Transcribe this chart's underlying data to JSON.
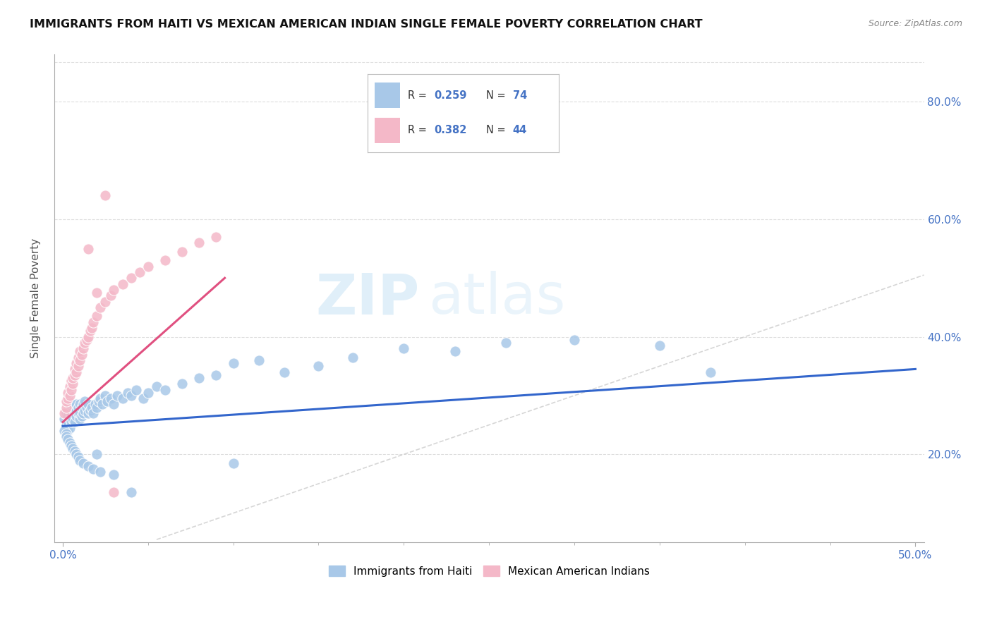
{
  "title": "IMMIGRANTS FROM HAITI VS MEXICAN AMERICAN INDIAN SINGLE FEMALE POVERTY CORRELATION CHART",
  "source": "Source: ZipAtlas.com",
  "ylabel": "Single Female Poverty",
  "y_ticks": [
    0.2,
    0.4,
    0.6,
    0.8
  ],
  "y_tick_labels": [
    "20.0%",
    "40.0%",
    "60.0%",
    "80.0%"
  ],
  "xlim": [
    -0.005,
    0.505
  ],
  "ylim": [
    0.05,
    0.88
  ],
  "blue_color": "#a8c8e8",
  "pink_color": "#f4b8c8",
  "blue_line_color": "#3366cc",
  "pink_line_color": "#e05080",
  "diag_line_color": "#cccccc",
  "watermark_zip": "ZIP",
  "watermark_atlas": "atlas",
  "haiti_scatter_x": [
    0.001,
    0.002,
    0.002,
    0.003,
    0.003,
    0.003,
    0.004,
    0.004,
    0.004,
    0.005,
    0.005,
    0.005,
    0.005,
    0.006,
    0.006,
    0.006,
    0.007,
    0.007,
    0.007,
    0.008,
    0.008,
    0.008,
    0.009,
    0.009,
    0.01,
    0.01,
    0.01,
    0.011,
    0.011,
    0.012,
    0.012,
    0.013,
    0.013,
    0.014,
    0.015,
    0.015,
    0.016,
    0.017,
    0.018,
    0.019,
    0.02,
    0.021,
    0.022,
    0.023,
    0.025,
    0.026,
    0.028,
    0.03,
    0.032,
    0.035,
    0.038,
    0.04,
    0.043,
    0.047,
    0.05,
    0.055,
    0.06,
    0.07,
    0.08,
    0.09,
    0.1,
    0.115,
    0.13,
    0.15,
    0.17,
    0.2,
    0.23,
    0.26,
    0.3,
    0.35,
    0.38,
    0.1,
    0.02,
    0.04
  ],
  "haiti_scatter_y": [
    0.26,
    0.25,
    0.27,
    0.24,
    0.255,
    0.265,
    0.245,
    0.26,
    0.275,
    0.255,
    0.265,
    0.27,
    0.28,
    0.26,
    0.275,
    0.285,
    0.255,
    0.27,
    0.28,
    0.265,
    0.275,
    0.285,
    0.27,
    0.28,
    0.26,
    0.27,
    0.285,
    0.265,
    0.28,
    0.27,
    0.285,
    0.275,
    0.29,
    0.28,
    0.27,
    0.285,
    0.275,
    0.28,
    0.27,
    0.285,
    0.28,
    0.29,
    0.295,
    0.285,
    0.3,
    0.29,
    0.295,
    0.285,
    0.3,
    0.295,
    0.305,
    0.3,
    0.31,
    0.295,
    0.305,
    0.315,
    0.31,
    0.32,
    0.33,
    0.335,
    0.355,
    0.36,
    0.34,
    0.35,
    0.365,
    0.38,
    0.375,
    0.39,
    0.395,
    0.385,
    0.34,
    0.185,
    0.2,
    0.135
  ],
  "haiti_scatter_y_low": [
    0.24,
    0.235,
    0.23,
    0.225,
    0.22,
    0.215,
    0.21,
    0.205,
    0.2,
    0.195,
    0.19,
    0.185,
    0.18,
    0.175,
    0.17,
    0.165
  ],
  "haiti_scatter_x_low": [
    0.001,
    0.002,
    0.002,
    0.003,
    0.004,
    0.005,
    0.006,
    0.007,
    0.008,
    0.009,
    0.01,
    0.012,
    0.015,
    0.018,
    0.022,
    0.03
  ],
  "mexican_scatter_x": [
    0.001,
    0.002,
    0.002,
    0.003,
    0.003,
    0.004,
    0.004,
    0.005,
    0.005,
    0.006,
    0.006,
    0.007,
    0.007,
    0.008,
    0.008,
    0.009,
    0.009,
    0.01,
    0.01,
    0.011,
    0.012,
    0.013,
    0.014,
    0.015,
    0.016,
    0.017,
    0.018,
    0.02,
    0.022,
    0.025,
    0.028,
    0.03,
    0.035,
    0.04,
    0.045,
    0.05,
    0.06,
    0.07,
    0.08,
    0.09,
    0.015,
    0.02,
    0.025,
    0.03
  ],
  "mexican_scatter_y": [
    0.27,
    0.28,
    0.29,
    0.295,
    0.305,
    0.3,
    0.315,
    0.31,
    0.325,
    0.32,
    0.33,
    0.335,
    0.345,
    0.34,
    0.355,
    0.35,
    0.365,
    0.36,
    0.375,
    0.37,
    0.38,
    0.39,
    0.395,
    0.4,
    0.41,
    0.415,
    0.425,
    0.435,
    0.45,
    0.46,
    0.47,
    0.48,
    0.49,
    0.5,
    0.51,
    0.52,
    0.53,
    0.545,
    0.56,
    0.57,
    0.55,
    0.475,
    0.64,
    0.135
  ],
  "blue_line_x": [
    0.0,
    0.5
  ],
  "blue_line_y": [
    0.248,
    0.345
  ],
  "pink_line_x": [
    0.0,
    0.095
  ],
  "pink_line_y": [
    0.255,
    0.5
  ],
  "diag_line_x": [
    0.055,
    0.505
  ],
  "diag_line_y": [
    0.055,
    0.505
  ]
}
